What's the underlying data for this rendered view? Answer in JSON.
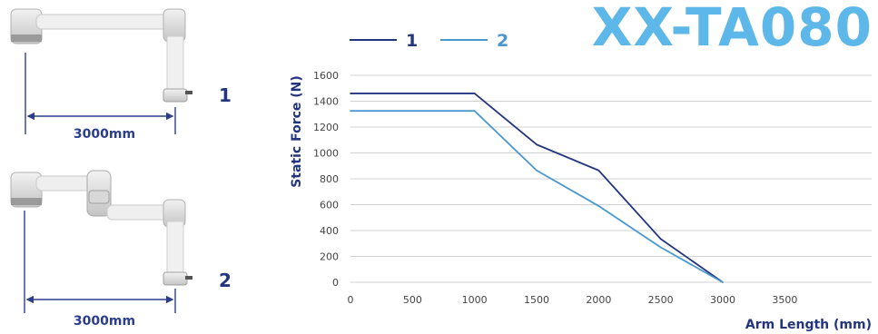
{
  "title": "XX-TA080",
  "colors": {
    "series_1": "#24357f",
    "series_2": "#4a97cf",
    "title": "#5db7e8",
    "dimension": "#2a3d8f",
    "grid": "#d0d0d0",
    "arm_body": "#eeeeee",
    "arm_joint": "#c9c9c9"
  },
  "diagrams": [
    {
      "label": "1",
      "dimension": "3000mm"
    },
    {
      "label": "2",
      "dimension": "3000mm"
    }
  ],
  "chart_data": {
    "type": "line",
    "title": "",
    "xlabel": "Arm Length (mm)",
    "ylabel": "Static Force (N)",
    "xlim": [
      0,
      4200
    ],
    "ylim": [
      0,
      1600
    ],
    "xticks": [
      0,
      500,
      1000,
      1500,
      2000,
      2500,
      3000,
      3500
    ],
    "yticks": [
      0,
      200,
      400,
      600,
      800,
      1000,
      1200,
      1400,
      1600
    ],
    "grid": true,
    "legend_position": "top-left",
    "series": [
      {
        "name": "1",
        "x": [
          0,
          1000,
          1500,
          2000,
          2500,
          3000
        ],
        "y": [
          1460,
          1460,
          1065,
          865,
          335,
          0
        ]
      },
      {
        "name": "2",
        "x": [
          0,
          1000,
          1500,
          2000,
          2500,
          3000
        ],
        "y": [
          1325,
          1325,
          865,
          590,
          270,
          0
        ]
      }
    ]
  }
}
